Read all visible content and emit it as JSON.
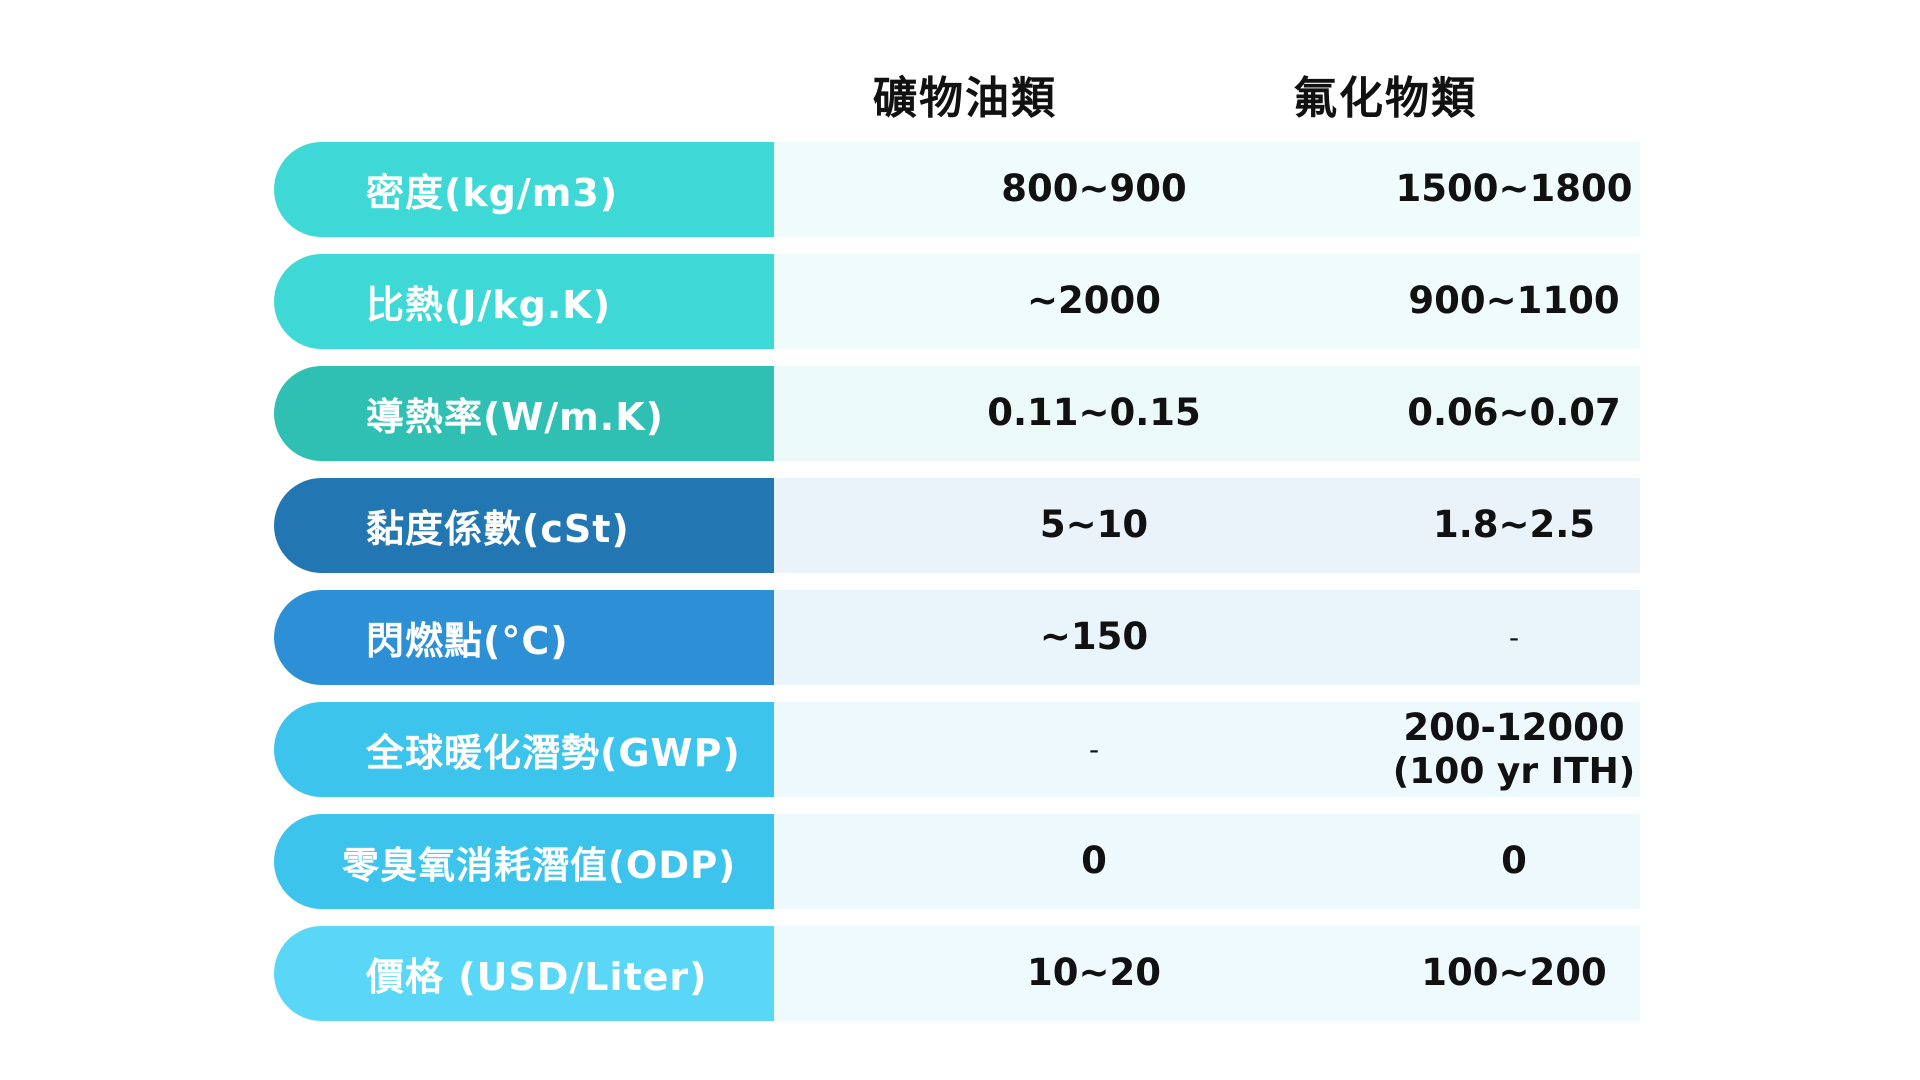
{
  "header": {
    "mineral_oil": "礦物油類",
    "fluoride": "氟化物類"
  },
  "rows": [
    {
      "label": "密度(kg/m3)",
      "mineral": "800~900",
      "fluoride": "1500~1800",
      "label_color": "#3ed8d6",
      "row_bg": "#f0fcfc"
    },
    {
      "label": "比熱(J/kg.K)",
      "mineral": "~2000",
      "fluoride": "900~1100",
      "label_color": "#3ed8d6",
      "row_bg": "#f0fcfc"
    },
    {
      "label": "導熱率(W/m.K)",
      "mineral": "0.11~0.15",
      "fluoride": "0.06~0.07",
      "label_color": "#2fbfb3",
      "row_bg": "#ebfaf8"
    },
    {
      "label": "黏度係數(cSt)",
      "mineral": "5~10",
      "fluoride": "1.8~2.5",
      "label_color": "#2277b3",
      "row_bg": "#e9f3f9"
    },
    {
      "label": "閃燃點(°C)",
      "mineral": "~150",
      "fluoride": "-",
      "label_color": "#2d8fd6",
      "row_bg": "#eaf4fb"
    },
    {
      "label": "全球暖化潛勢(GWP)",
      "mineral": "-",
      "fluoride": "200-12000",
      "fluoride_line2": "(100 yr ITH)",
      "label_color": "#3cc4ec",
      "row_bg": "#eef9fd"
    },
    {
      "label": "零臭氧消耗潛值(ODP)",
      "mineral": "0",
      "fluoride": "0",
      "label_color": "#3cc4ec",
      "row_bg": "#eef9fd"
    },
    {
      "label": "價格 (USD/Liter)",
      "mineral": "10~20",
      "fluoride": "100~200",
      "label_color": "#5ad7f7",
      "row_bg": "#eefafe"
    }
  ]
}
